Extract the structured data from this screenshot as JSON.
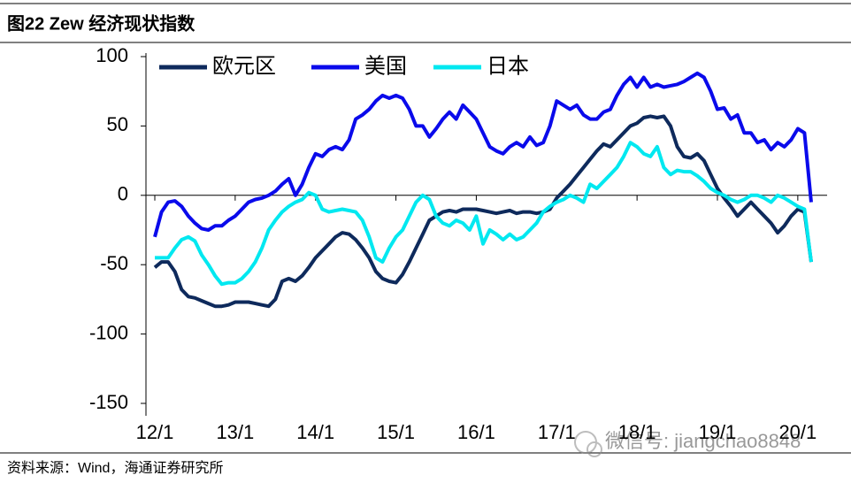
{
  "header": {
    "title": "图22 Zew 经济现状指数"
  },
  "footer": {
    "source": "资料来源：Wind，海通证券研究所",
    "watermark": "微信号: jiangchao8848"
  },
  "chart_data": {
    "type": "line",
    "categories": [
      "12/1",
      null,
      null,
      null,
      null,
      null,
      null,
      null,
      null,
      null,
      null,
      null,
      "13/1",
      null,
      null,
      null,
      null,
      null,
      null,
      null,
      null,
      null,
      null,
      null,
      "14/1",
      null,
      null,
      null,
      null,
      null,
      null,
      null,
      null,
      null,
      null,
      null,
      "15/1",
      null,
      null,
      null,
      null,
      null,
      null,
      null,
      null,
      null,
      null,
      null,
      "16/1",
      null,
      null,
      null,
      null,
      null,
      null,
      null,
      null,
      null,
      null,
      null,
      "17/1",
      null,
      null,
      null,
      null,
      null,
      null,
      null,
      null,
      null,
      null,
      null,
      "18/1",
      null,
      null,
      null,
      null,
      null,
      null,
      null,
      null,
      null,
      null,
      null,
      "19/1",
      null,
      null,
      null,
      null,
      null,
      null,
      null,
      null,
      null,
      null,
      null,
      "20/1",
      null,
      null
    ],
    "series": [
      {
        "name": "欧元区",
        "color": "#0e2a5c",
        "values": [
          -52,
          -48,
          -48,
          -55,
          -68,
          -73,
          -74,
          -76,
          -78,
          -80,
          -80,
          -79,
          -77,
          -77,
          -77,
          -78,
          -79,
          -80,
          -75,
          -62,
          -60,
          -62,
          -58,
          -52,
          -45,
          -40,
          -35,
          -30,
          -27,
          -28,
          -32,
          -38,
          -45,
          -55,
          -60,
          -62,
          -63,
          -57,
          -48,
          -38,
          -28,
          -18,
          -15,
          -12,
          -11,
          -12,
          -10,
          -10,
          -10,
          -11,
          -12,
          -13,
          -12,
          -11,
          -13,
          -12,
          -12,
          -13,
          -12,
          -10,
          -2,
          3,
          8,
          14,
          20,
          26,
          32,
          37,
          35,
          40,
          45,
          50,
          52,
          56,
          57,
          56,
          57,
          50,
          35,
          28,
          27,
          30,
          25,
          15,
          5,
          -2,
          -8,
          -15,
          -10,
          -5,
          -10,
          -15,
          -20,
          -27,
          -22,
          -15,
          -10,
          -12,
          -48
        ]
      },
      {
        "name": "美国",
        "color": "#0a0aeb",
        "values": [
          -30,
          -12,
          -5,
          -4,
          -8,
          -15,
          -20,
          -24,
          -25,
          -22,
          -22,
          -18,
          -15,
          -10,
          -5,
          -3,
          -2,
          0,
          3,
          8,
          12,
          0,
          8,
          20,
          30,
          28,
          33,
          35,
          33,
          40,
          55,
          58,
          62,
          68,
          72,
          70,
          72,
          70,
          62,
          50,
          50,
          42,
          48,
          55,
          60,
          55,
          65,
          60,
          55,
          45,
          35,
          32,
          30,
          35,
          38,
          35,
          42,
          36,
          38,
          50,
          68,
          65,
          62,
          65,
          58,
          55,
          55,
          60,
          62,
          72,
          80,
          85,
          78,
          85,
          78,
          80,
          78,
          79,
          80,
          82,
          85,
          88,
          85,
          75,
          62,
          63,
          55,
          58,
          45,
          45,
          38,
          40,
          33,
          38,
          35,
          40,
          48,
          45,
          -5
        ]
      },
      {
        "name": "日本",
        "color": "#00e8f0",
        "values": [
          -45,
          -45,
          -45,
          -38,
          -32,
          -30,
          -33,
          -43,
          -50,
          -58,
          -64,
          -63,
          -63,
          -60,
          -55,
          -48,
          -38,
          -25,
          -18,
          -12,
          -8,
          -5,
          -3,
          2,
          0,
          -10,
          -12,
          -11,
          -10,
          -11,
          -12,
          -18,
          -30,
          -45,
          -48,
          -38,
          -30,
          -25,
          -15,
          -5,
          0,
          -3,
          -15,
          -20,
          -22,
          -18,
          -20,
          -25,
          -15,
          -35,
          -25,
          -28,
          -32,
          -28,
          -32,
          -30,
          -25,
          -20,
          -12,
          -8,
          -5,
          -3,
          0,
          -2,
          -5,
          8,
          5,
          10,
          15,
          20,
          28,
          38,
          35,
          30,
          28,
          35,
          20,
          15,
          18,
          17,
          17,
          14,
          10,
          5,
          2,
          0,
          -3,
          -5,
          -3,
          0,
          0,
          -2,
          -5,
          0,
          -2,
          -5,
          -8,
          -10,
          -48
        ]
      }
    ],
    "ylim": [
      -150,
      100
    ],
    "yticks": [
      -150,
      -100,
      -50,
      0,
      50,
      100
    ],
    "legend": "top-left"
  }
}
